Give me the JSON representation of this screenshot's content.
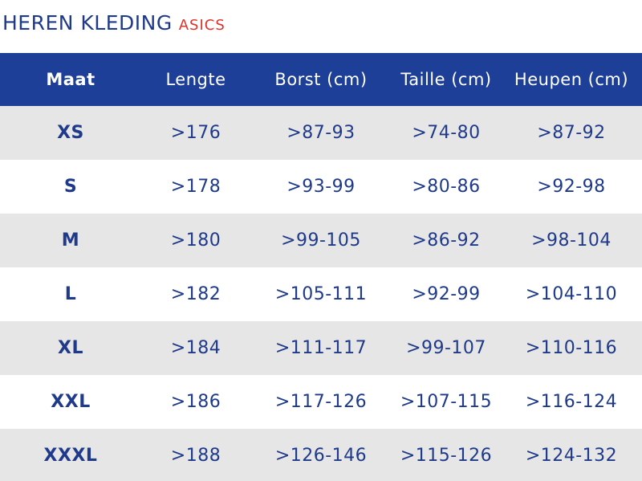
{
  "title": {
    "main": "HEREN KLEDING",
    "brand": "ASICS"
  },
  "colors": {
    "header_bg": "#1d3f97",
    "text": "#1f3a8a",
    "brand": "#e0312b",
    "stripe": "#e6e6e6"
  },
  "table": {
    "headers": [
      "Maat",
      "Lengte",
      "Borst (cm)",
      "Taille (cm)",
      "Heupen (cm)"
    ],
    "rows": [
      [
        "XS",
        ">176",
        ">87-93",
        ">74-80",
        ">87-92"
      ],
      [
        "S",
        ">178",
        ">93-99",
        ">80-86",
        ">92-98"
      ],
      [
        "M",
        ">180",
        ">99-105",
        ">86-92",
        ">98-104"
      ],
      [
        "L",
        ">182",
        ">105-111",
        ">92-99",
        ">104-110"
      ],
      [
        "XL",
        ">184",
        ">111-117",
        ">99-107",
        ">110-116"
      ],
      [
        "XXL",
        ">186",
        ">117-126",
        ">107-115",
        ">116-124"
      ],
      [
        "XXXL",
        ">188",
        ">126-146",
        ">115-126",
        ">124-132"
      ]
    ]
  }
}
